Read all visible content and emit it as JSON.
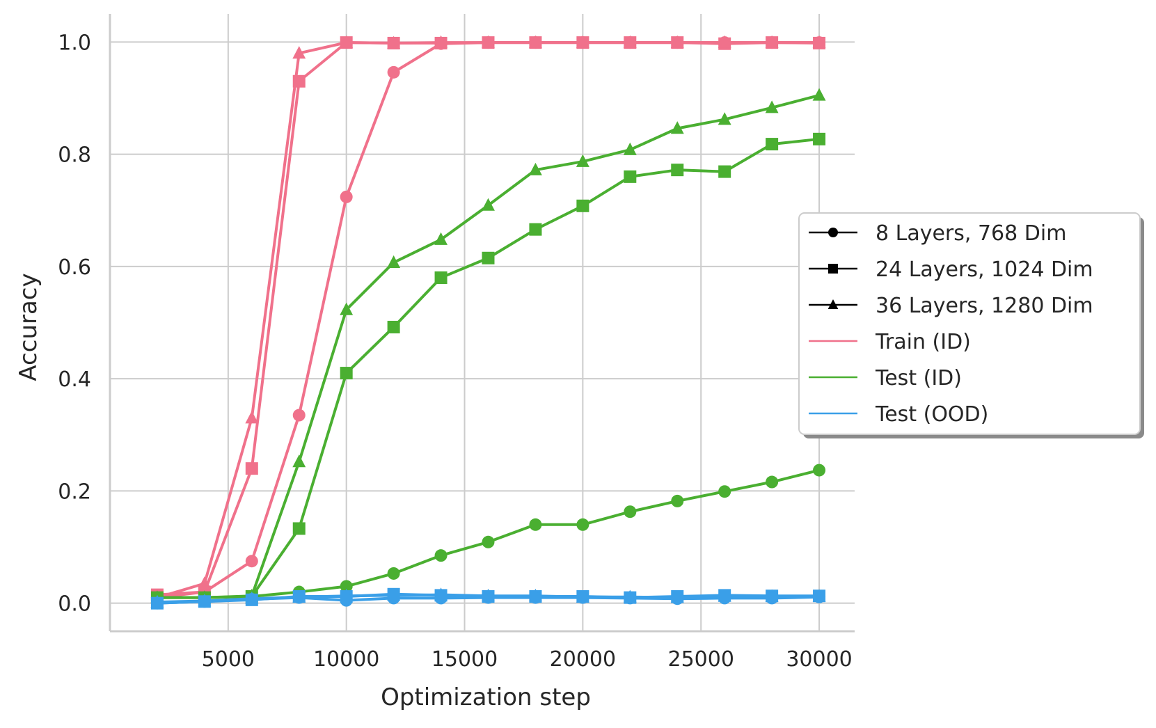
{
  "chart_data": {
    "type": "line",
    "title": "",
    "xlabel": "Optimization step",
    "ylabel": "Accuracy",
    "xlim": [
      0,
      31500
    ],
    "ylim": [
      -0.05,
      1.05
    ],
    "xticks": [
      5000,
      10000,
      15000,
      20000,
      25000,
      30000
    ],
    "xtick_labels": [
      "5000",
      "10000",
      "15000",
      "20000",
      "25000",
      "30000"
    ],
    "yticks": [
      0.0,
      0.2,
      0.4,
      0.6,
      0.8,
      1.0
    ],
    "ytick_labels": [
      "0.0",
      "0.2",
      "0.4",
      "0.6",
      "0.8",
      "1.0"
    ],
    "grid": true,
    "legend_position": "right",
    "legend": [
      {
        "label": "8 Layers, 768 Dim",
        "marker": "circle",
        "color": "#000000"
      },
      {
        "label": "24 Layers, 1024 Dim",
        "marker": "square",
        "color": "#000000"
      },
      {
        "label": "36 Layers, 1280 Dim",
        "marker": "triangle",
        "color": "#000000"
      },
      {
        "label": "Train (ID)",
        "marker": "none",
        "color": "#f0718b"
      },
      {
        "label": "Test (ID)",
        "marker": "none",
        "color": "#4aaf31"
      },
      {
        "label": "Test (OOD)",
        "marker": "none",
        "color": "#3a9fe8"
      }
    ],
    "x": [
      2000,
      4000,
      6000,
      8000,
      10000,
      12000,
      14000,
      16000,
      18000,
      20000,
      22000,
      24000,
      26000,
      28000,
      30000
    ],
    "series": [
      {
        "split": "Train (ID)",
        "model": "8 Layers, 768 Dim",
        "color": "#f0718b",
        "marker": "circle",
        "values": [
          0.01,
          0.02,
          0.075,
          0.335,
          0.724,
          0.946,
          0.997,
          0.999,
          0.999,
          0.999,
          0.999,
          0.999,
          0.999,
          0.999,
          0.999
        ]
      },
      {
        "split": "Train (ID)",
        "model": "24 Layers, 1024 Dim",
        "color": "#f0718b",
        "marker": "square",
        "values": [
          0.015,
          0.02,
          0.24,
          0.93,
          0.999,
          0.998,
          0.998,
          0.999,
          0.999,
          0.999,
          0.999,
          0.999,
          0.997,
          0.999,
          0.998
        ]
      },
      {
        "split": "Train (ID)",
        "model": "36 Layers, 1280 Dim",
        "color": "#f0718b",
        "marker": "triangle",
        "values": [
          0.01,
          0.035,
          0.33,
          0.98,
          0.999,
          0.998,
          0.999,
          0.999,
          0.999,
          0.999,
          0.999,
          0.999,
          0.999,
          0.999,
          0.999
        ]
      },
      {
        "split": "Test (ID)",
        "model": "8 Layers, 768 Dim",
        "color": "#4aaf31",
        "marker": "circle",
        "values": [
          0.01,
          0.01,
          0.012,
          0.02,
          0.03,
          0.053,
          0.085,
          0.109,
          0.14,
          0.14,
          0.163,
          0.182,
          0.199,
          0.216,
          0.237
        ]
      },
      {
        "split": "Test (ID)",
        "model": "24 Layers, 1024 Dim",
        "color": "#4aaf31",
        "marker": "square",
        "values": [
          0.01,
          0.01,
          0.012,
          0.133,
          0.41,
          0.492,
          0.58,
          0.615,
          0.666,
          0.708,
          0.76,
          0.772,
          0.769,
          0.818,
          0.827
        ]
      },
      {
        "split": "Test (ID)",
        "model": "36 Layers, 1280 Dim",
        "color": "#4aaf31",
        "marker": "triangle",
        "values": [
          0.01,
          0.01,
          0.013,
          0.252,
          0.523,
          0.607,
          0.648,
          0.709,
          0.772,
          0.787,
          0.808,
          0.846,
          0.862,
          0.883,
          0.905
        ]
      },
      {
        "split": "Test (OOD)",
        "model": "8 Layers, 768 Dim",
        "color": "#3a9fe8",
        "marker": "circle",
        "values": [
          0.0,
          0.003,
          0.007,
          0.01,
          0.005,
          0.009,
          0.009,
          0.01,
          0.01,
          0.01,
          0.009,
          0.008,
          0.009,
          0.009,
          0.011
        ]
      },
      {
        "split": "Test (OOD)",
        "model": "24 Layers, 1024 Dim",
        "color": "#3a9fe8",
        "marker": "square",
        "values": [
          0.0,
          0.003,
          0.006,
          0.012,
          0.012,
          0.016,
          0.014,
          0.012,
          0.012,
          0.012,
          0.01,
          0.012,
          0.014,
          0.013,
          0.013
        ]
      },
      {
        "split": "Test (OOD)",
        "model": "36 Layers, 1280 Dim",
        "color": "#3a9fe8",
        "marker": "triangle",
        "values": [
          0.002,
          0.004,
          0.008,
          0.011,
          0.013,
          0.014,
          0.015,
          0.013,
          0.013,
          0.011,
          0.011,
          0.01,
          0.012,
          0.012,
          0.012
        ]
      }
    ]
  }
}
